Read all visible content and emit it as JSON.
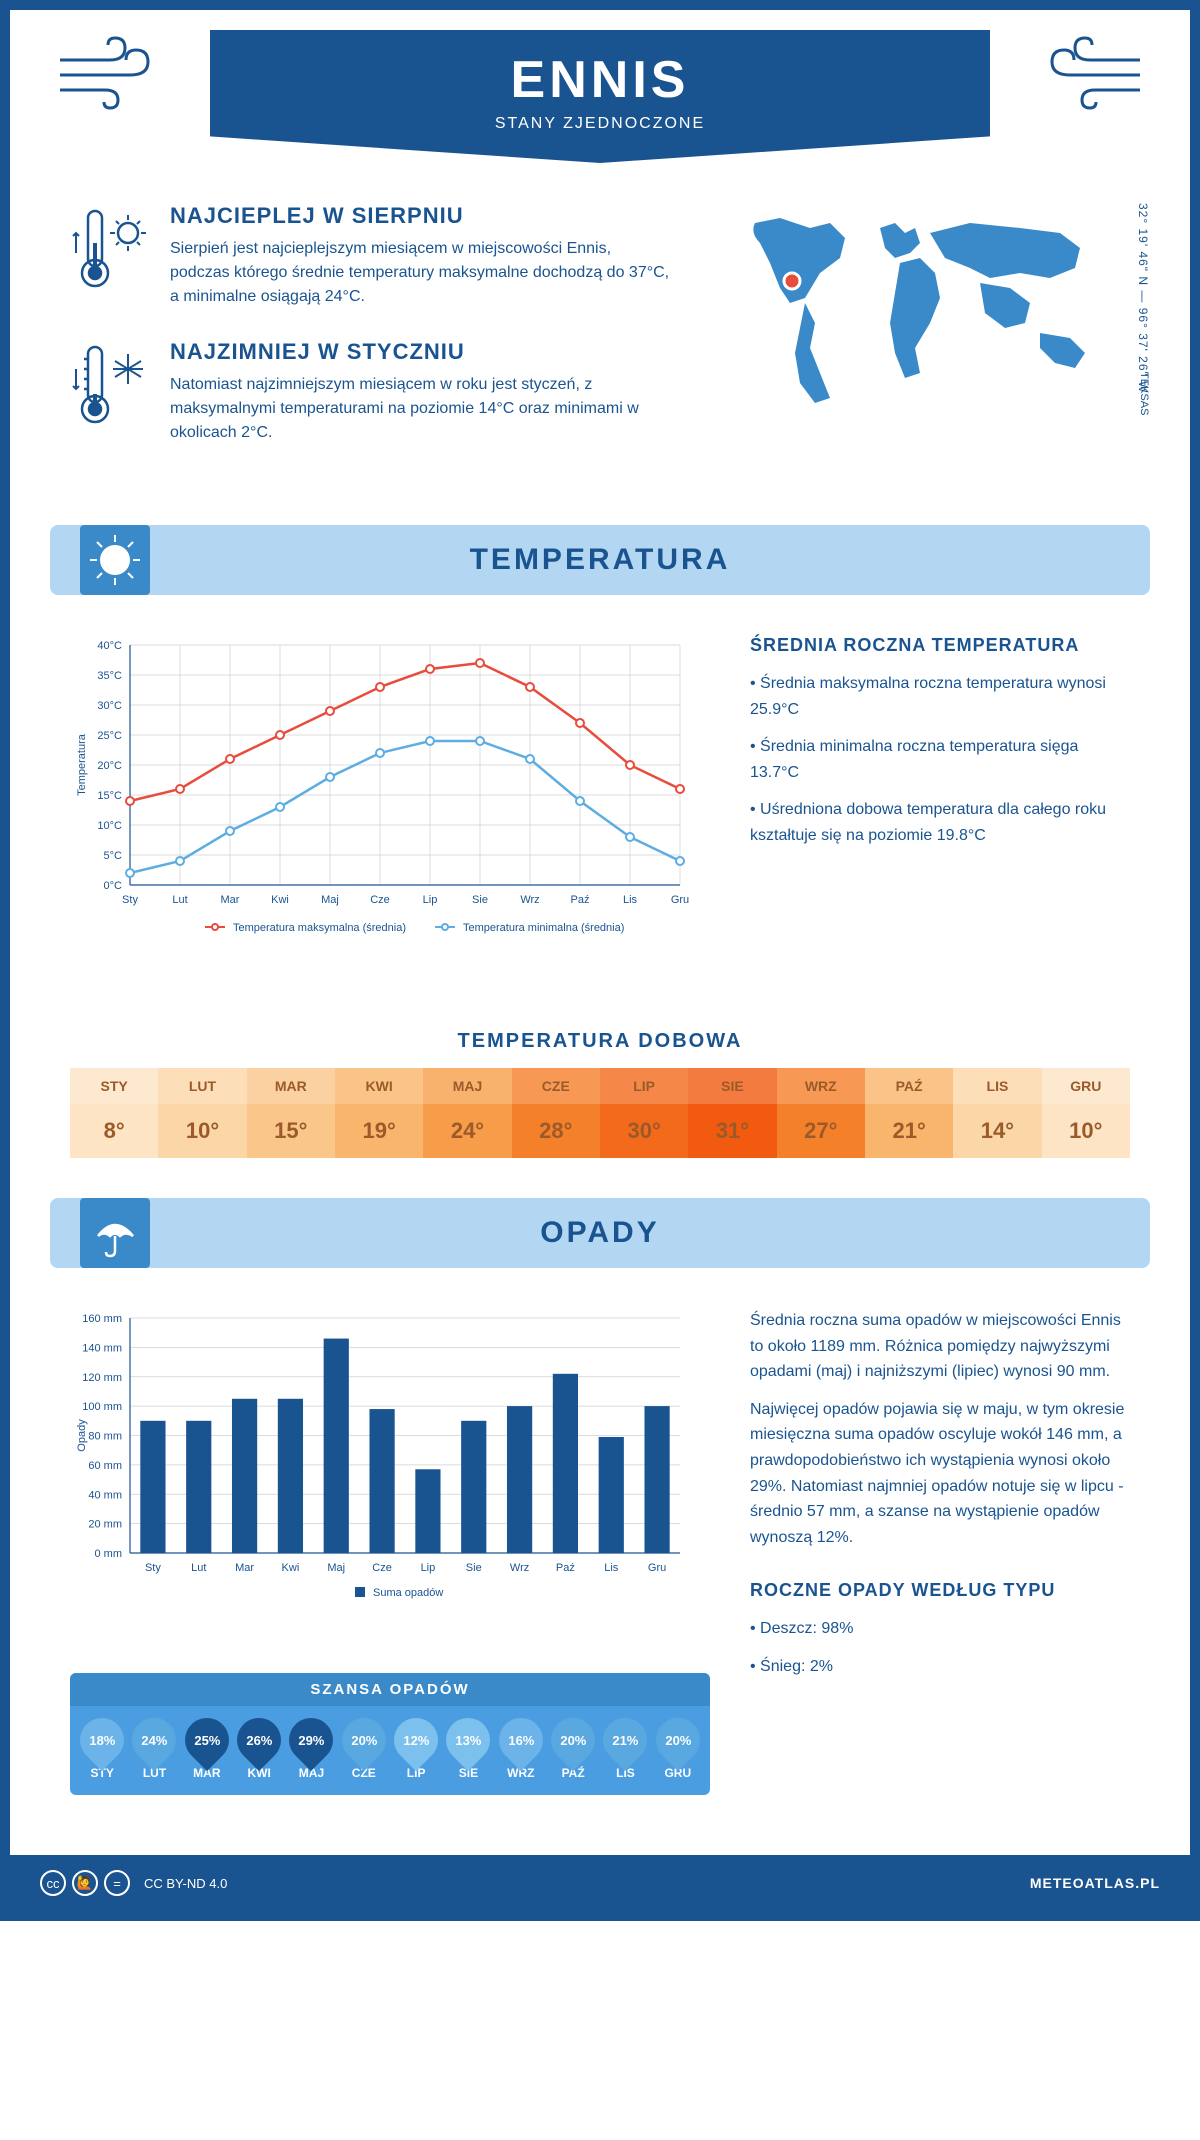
{
  "header": {
    "title": "ENNIS",
    "subtitle": "STANY ZJEDNOCZONE"
  },
  "coords": "32° 19' 46\" N — 96° 37' 26\" W",
  "region": "TEKSAS",
  "facts": {
    "hot": {
      "title": "NAJCIEPLEJ W SIERPNIU",
      "text": "Sierpień jest najcieplejszym miesiącem w miejscowości Ennis, podczas którego średnie temperatury maksymalne dochodzą do 37°C, a minimalne osiągają 24°C."
    },
    "cold": {
      "title": "NAJZIMNIEJ W STYCZNIU",
      "text": "Natomiast najzimniejszym miesiącem w roku jest styczeń, z maksymalnymi temperaturami na poziomie 14°C oraz minimami w okolicach 2°C."
    }
  },
  "sections": {
    "temp_title": "TEMPERATURA",
    "precip_title": "OPADY"
  },
  "temp_chart": {
    "type": "line",
    "months": [
      "Sty",
      "Lut",
      "Mar",
      "Kwi",
      "Maj",
      "Cze",
      "Lip",
      "Sie",
      "Wrz",
      "Paź",
      "Lis",
      "Gru"
    ],
    "max_values": [
      14,
      16,
      21,
      25,
      29,
      33,
      36,
      37,
      33,
      27,
      20,
      16
    ],
    "min_values": [
      2,
      4,
      9,
      13,
      18,
      22,
      24,
      24,
      21,
      14,
      8,
      4
    ],
    "max_color": "#e74c3c",
    "min_color": "#5dade2",
    "ylabel": "Temperatura",
    "ylim": [
      0,
      40
    ],
    "ytick_step": 5,
    "grid_color": "#d0d0d0",
    "legend_max": "Temperatura maksymalna (średnia)",
    "legend_min": "Temperatura minimalna (średnia)"
  },
  "temp_side": {
    "title": "ŚREDNIA ROCZNA TEMPERATURA",
    "p1": "• Średnia maksymalna roczna temperatura wynosi 25.9°C",
    "p2": "• Średnia minimalna roczna temperatura sięga 13.7°C",
    "p3": "• Uśredniona dobowa temperatura dla całego roku kształtuje się na poziomie 19.8°C"
  },
  "daily_temp": {
    "title": "TEMPERATURA DOBOWA",
    "months": [
      "STY",
      "LUT",
      "MAR",
      "KWI",
      "MAJ",
      "CZE",
      "LIP",
      "SIE",
      "WRZ",
      "PAŹ",
      "LIS",
      "GRU"
    ],
    "values": [
      "8°",
      "10°",
      "15°",
      "19°",
      "24°",
      "28°",
      "30°",
      "31°",
      "27°",
      "21°",
      "14°",
      "10°"
    ],
    "colors": [
      "#fce4c4",
      "#fbd7a8",
      "#fac68a",
      "#f9b56c",
      "#f79d4a",
      "#f5802a",
      "#f36a1a",
      "#f15a0f",
      "#f5802a",
      "#f9b56c",
      "#fbd7a8",
      "#fce4c4"
    ]
  },
  "precip_chart": {
    "type": "bar",
    "months": [
      "Sty",
      "Lut",
      "Mar",
      "Kwi",
      "Maj",
      "Cze",
      "Lip",
      "Sie",
      "Wrz",
      "Paź",
      "Lis",
      "Gru"
    ],
    "values": [
      90,
      90,
      105,
      105,
      146,
      98,
      57,
      90,
      100,
      122,
      79,
      100
    ],
    "bar_color": "#1a5490",
    "ylabel": "Opady",
    "ylim": [
      0,
      160
    ],
    "ytick_step": 20,
    "grid_color": "#d0d0d0",
    "legend": "Suma opadów"
  },
  "precip_side": {
    "p1": "Średnia roczna suma opadów w miejscowości Ennis to około 1189 mm. Różnica pomiędzy najwyższymi opadami (maj) i najniższymi (lipiec) wynosi 90 mm.",
    "p2": "Najwięcej opadów pojawia się w maju, w tym okresie miesięczna suma opadów oscyluje wokół 146 mm, a prawdopodobieństwo ich wystąpienia wynosi około 29%. Natomiast najmniej opadów notuje się w lipcu - średnio 57 mm, a szanse na wystąpienie opadów wynoszą 12%.",
    "type_title": "ROCZNE OPADY WEDŁUG TYPU",
    "type_rain": "• Deszcz: 98%",
    "type_snow": "• Śnieg: 2%"
  },
  "chance": {
    "title": "SZANSA OPADÓW",
    "months": [
      "STY",
      "LUT",
      "MAR",
      "KWI",
      "MAJ",
      "CZE",
      "LIP",
      "SIE",
      "WRZ",
      "PAŹ",
      "LIS",
      "GRU"
    ],
    "values": [
      "18%",
      "24%",
      "25%",
      "26%",
      "29%",
      "20%",
      "12%",
      "13%",
      "16%",
      "20%",
      "21%",
      "20%"
    ],
    "colors": [
      "#6bb3e8",
      "#5aa8e0",
      "#1a5490",
      "#1a5490",
      "#1a5490",
      "#5aa8e0",
      "#7cc0ed",
      "#7cc0ed",
      "#6bb3e8",
      "#5aa8e0",
      "#5aa8e0",
      "#5aa8e0"
    ]
  },
  "footer": {
    "license": "CC BY-ND 4.0",
    "brand": "METEOATLAS.PL"
  }
}
